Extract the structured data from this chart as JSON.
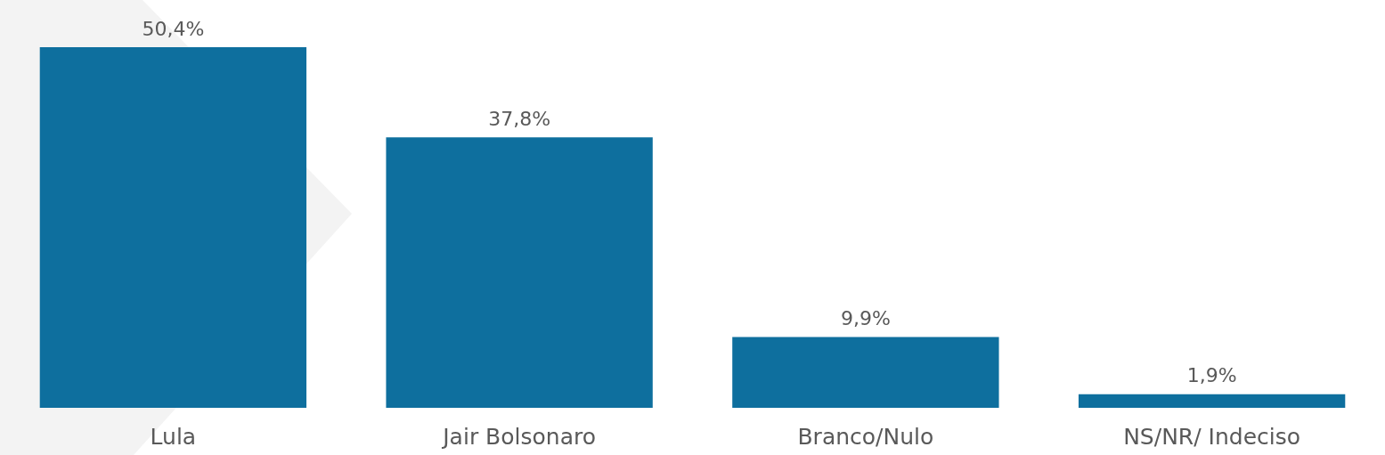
{
  "chart_data": {
    "type": "bar",
    "categories": [
      "Lula",
      "Jair Bolsonaro",
      "Branco/Nulo",
      "NS/NR/ Indeciso"
    ],
    "values": [
      50.4,
      37.8,
      9.9,
      1.9
    ],
    "value_labels": [
      "50,4%",
      "37,8%",
      "9,9%",
      "1,9%"
    ],
    "color": "#0e6f9e"
  }
}
